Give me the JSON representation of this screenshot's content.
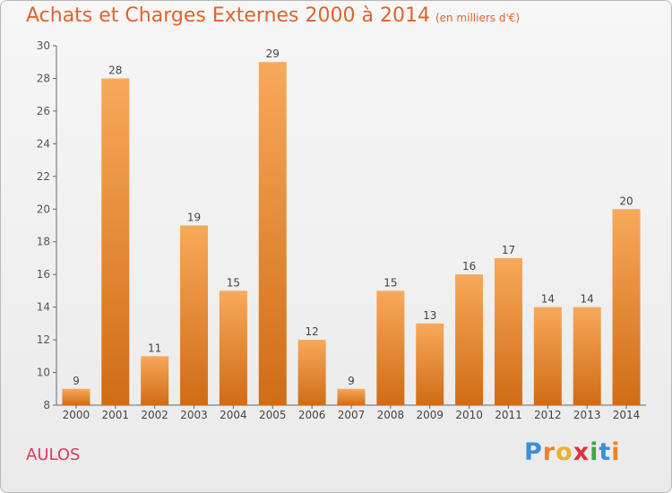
{
  "title": "Achats et Charges Externes 2000 à 2014",
  "subtitle": "(en milliers d'€)",
  "commune": "AULOS",
  "logo": {
    "letters": [
      "P",
      "r",
      "o",
      "x",
      "i",
      "t",
      "i"
    ],
    "colors": [
      "#3a8fd8",
      "#e8842c",
      "#e8b22c",
      "#d8343c",
      "#3aa84a",
      "#3a8fd8",
      "#e8842c"
    ]
  },
  "colors": {
    "title": "#e0632a",
    "commune": "#d83a57",
    "bar_top": "#f7a95a",
    "bar_bottom": "#d06c16"
  },
  "chart_data": {
    "type": "bar",
    "categories": [
      "2000",
      "2001",
      "2002",
      "2003",
      "2004",
      "2005",
      "2006",
      "2007",
      "2008",
      "2009",
      "2010",
      "2011",
      "2012",
      "2013",
      "2014"
    ],
    "values": [
      9,
      28,
      11,
      19,
      15,
      29,
      12,
      9,
      15,
      13,
      16,
      17,
      14,
      14,
      20
    ],
    "ylim": [
      8,
      30
    ],
    "yticks": [
      8,
      10,
      12,
      14,
      16,
      18,
      20,
      22,
      24,
      26,
      28,
      30
    ],
    "grid": false,
    "legend": "none"
  }
}
